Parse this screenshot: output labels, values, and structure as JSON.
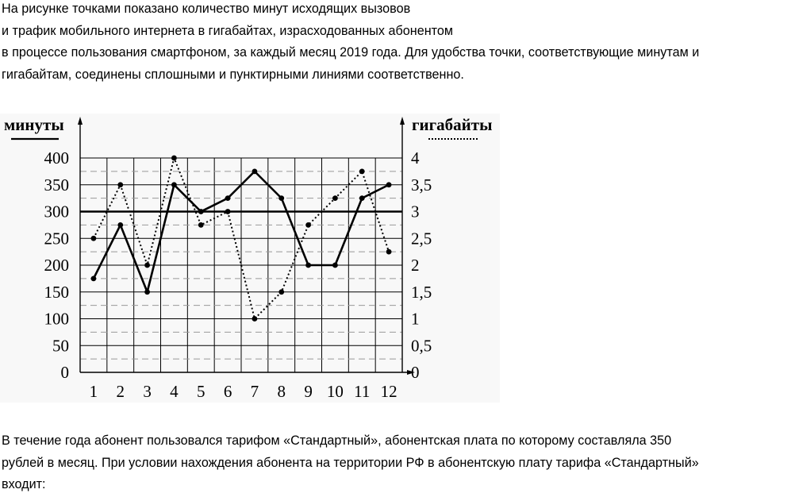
{
  "intro": {
    "lines": [
      "На рисунке точками показано количество минут исходящих вызовов",
      "и трафик мобильного интернета в гигабайтах, израсходованных абонентом",
      "в процессе пользования смартфоном, за каждый месяц 2019 года. Для удобства точки, соответствующие минутам и",
      "гигабайтам, соединены сплошными и пунктирными линиями соответственно."
    ]
  },
  "outro": {
    "lines": [
      "В течение года абонент пользовался тарифом «Стандартный», абонентская плата по которому составляла 350",
      "рублей в месяц. При условии нахождения абонента на территории РФ в абонентскую плату тарифа «Стандартный»",
      "входит:"
    ]
  },
  "chart_data": {
    "type": "line",
    "title": "",
    "x": [
      1,
      2,
      3,
      4,
      5,
      6,
      7,
      8,
      9,
      10,
      11,
      12
    ],
    "x_tick_labels": [
      "1",
      "2",
      "3",
      "4",
      "5",
      "6",
      "7",
      "8",
      "9",
      "10",
      "11",
      "12"
    ],
    "ylabel_left": "минуты",
    "ylabel_right": "гигабайты",
    "ylim_left": [
      0,
      400
    ],
    "ylim_right": [
      0,
      4
    ],
    "y_ticks_left": [
      "0",
      "50",
      "100",
      "150",
      "200",
      "250",
      "300",
      "350",
      "400"
    ],
    "y_ticks_right": [
      "0",
      "0,5",
      "1",
      "1,5",
      "2",
      "2,5",
      "3",
      "3,5",
      "4"
    ],
    "grid": true,
    "reference_line_left": 300,
    "series": [
      {
        "axis": "left",
        "style": "solid",
        "values": [
          175,
          275,
          150,
          350,
          300,
          325,
          375,
          325,
          200,
          200,
          325,
          350
        ]
      },
      {
        "axis": "right",
        "style": "dotted",
        "values": [
          2.5,
          3.5,
          2,
          4,
          2.75,
          3,
          1,
          1.5,
          2.75,
          3.25,
          3.75,
          2.25
        ]
      }
    ]
  }
}
